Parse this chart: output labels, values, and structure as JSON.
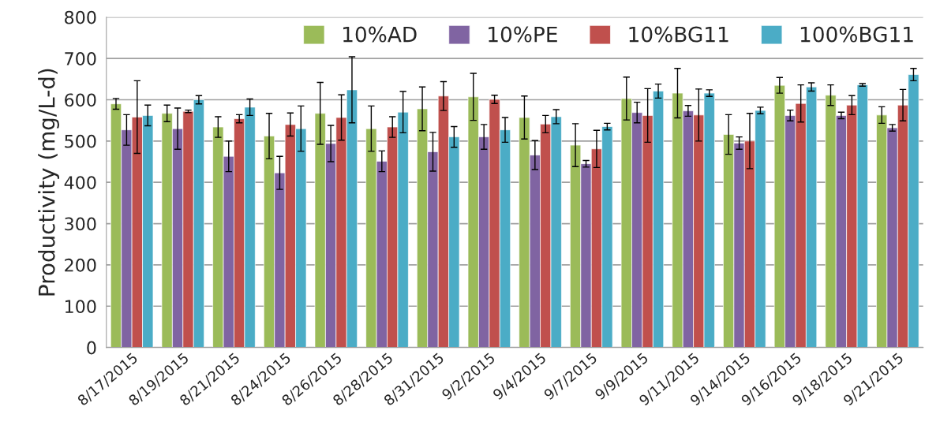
{
  "chart_data": {
    "type": "bar",
    "ylabel": "Productivity (mg/L-d)",
    "categories": [
      "8/17/2015",
      "8/19/2015",
      "8/21/2015",
      "8/24/2015",
      "8/26/2015",
      "8/28/2015",
      "8/31/2015",
      "9/2/2015",
      "9/4/2015",
      "9/7/2015",
      "9/9/2015",
      "9/11/2015",
      "9/14/2015",
      "9/16/2015",
      "9/18/2015",
      "9/21/2015"
    ],
    "series": [
      {
        "name": "10%AD",
        "color": "#9bbb59",
        "values": [
          590,
          567,
          534,
          512,
          567,
          530,
          578,
          607,
          557,
          490,
          603,
          616,
          516,
          635,
          611,
          563
        ],
        "errors": [
          13,
          20,
          25,
          55,
          75,
          55,
          53,
          57,
          52,
          52,
          52,
          60,
          48,
          19,
          25,
          20
        ]
      },
      {
        "name": "10%PE",
        "color": "#8064a2",
        "values": [
          527,
          530,
          463,
          423,
          494,
          451,
          474,
          510,
          466,
          445,
          569,
          573,
          495,
          562,
          562,
          532
        ],
        "errors": [
          37,
          50,
          37,
          40,
          44,
          25,
          47,
          30,
          35,
          8,
          25,
          13,
          15,
          13,
          8,
          8
        ]
      },
      {
        "name": "10%BG11",
        "color": "#c0504d",
        "values": [
          558,
          572,
          554,
          540,
          557,
          534,
          609,
          601,
          541,
          481,
          562,
          563,
          500,
          591,
          587,
          587
        ],
        "errors": [
          88,
          3,
          10,
          28,
          55,
          25,
          35,
          10,
          21,
          45,
          65,
          63,
          67,
          45,
          23,
          38
        ]
      },
      {
        "name": "100%BG11",
        "color": "#4bacc6",
        "values": [
          562,
          600,
          582,
          530,
          624,
          570,
          510,
          527,
          559,
          535,
          621,
          616,
          574,
          631,
          636,
          661
        ],
        "errors": [
          25,
          10,
          20,
          55,
          80,
          50,
          25,
          30,
          17,
          8,
          17,
          8,
          8,
          10,
          3,
          15
        ]
      }
    ],
    "ylim": [
      0,
      800
    ],
    "yticks": [
      0,
      100,
      200,
      300,
      400,
      500,
      600,
      700,
      800
    ],
    "grid": "y",
    "legend": "top right"
  }
}
